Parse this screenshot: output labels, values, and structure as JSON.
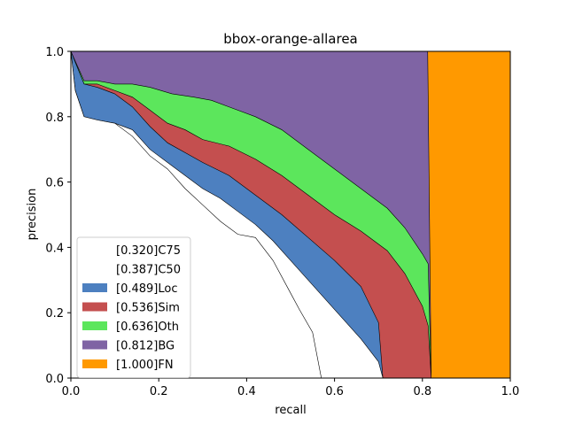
{
  "chart_data": {
    "type": "area",
    "title": "bbox-orange-allarea",
    "xlabel": "recall",
    "ylabel": "precision",
    "xlim": [
      0,
      1
    ],
    "ylim": [
      0,
      1
    ],
    "xticks": [
      "0.0",
      "0.2",
      "0.4",
      "0.6",
      "0.8",
      "1.0"
    ],
    "yticks": [
      "0.0",
      "0.2",
      "0.4",
      "0.6",
      "0.8",
      "1.0"
    ],
    "legend_position": "lower-left",
    "series": [
      {
        "name": "[1.000]FN",
        "color": "#ff9900",
        "points": [
          [
            0,
            1
          ],
          [
            1,
            1
          ]
        ]
      },
      {
        "name": "[0.812]BG",
        "color": "#7f64a4",
        "points": [
          [
            0,
            1
          ],
          [
            0.812,
            1
          ],
          [
            0.82,
            0
          ]
        ]
      },
      {
        "name": "[0.636]Oth",
        "color": "#5ce65c",
        "points": [
          [
            0,
            1
          ],
          [
            0.03,
            0.91
          ],
          [
            0.06,
            0.91
          ],
          [
            0.1,
            0.9
          ],
          [
            0.14,
            0.9
          ],
          [
            0.18,
            0.89
          ],
          [
            0.23,
            0.87
          ],
          [
            0.28,
            0.86
          ],
          [
            0.32,
            0.85
          ],
          [
            0.36,
            0.83
          ],
          [
            0.42,
            0.8
          ],
          [
            0.48,
            0.76
          ],
          [
            0.54,
            0.7
          ],
          [
            0.6,
            0.64
          ],
          [
            0.66,
            0.58
          ],
          [
            0.72,
            0.52
          ],
          [
            0.76,
            0.46
          ],
          [
            0.8,
            0.38
          ],
          [
            0.813,
            0.35
          ],
          [
            0.82,
            0
          ]
        ]
      },
      {
        "name": "[0.536]Sim",
        "color": "#c44f4f",
        "points": [
          [
            0,
            1
          ],
          [
            0.03,
            0.9
          ],
          [
            0.06,
            0.9
          ],
          [
            0.1,
            0.88
          ],
          [
            0.14,
            0.86
          ],
          [
            0.18,
            0.82
          ],
          [
            0.22,
            0.78
          ],
          [
            0.26,
            0.76
          ],
          [
            0.3,
            0.73
          ],
          [
            0.36,
            0.71
          ],
          [
            0.42,
            0.67
          ],
          [
            0.48,
            0.62
          ],
          [
            0.54,
            0.56
          ],
          [
            0.6,
            0.5
          ],
          [
            0.66,
            0.45
          ],
          [
            0.72,
            0.39
          ],
          [
            0.76,
            0.32
          ],
          [
            0.8,
            0.22
          ],
          [
            0.813,
            0.16
          ],
          [
            0.82,
            0
          ]
        ]
      },
      {
        "name": "[0.489]Loc",
        "color": "#4d80c0",
        "points": [
          [
            0,
            1
          ],
          [
            0.03,
            0.9
          ],
          [
            0.06,
            0.89
          ],
          [
            0.1,
            0.87
          ],
          [
            0.14,
            0.83
          ],
          [
            0.18,
            0.77
          ],
          [
            0.22,
            0.72
          ],
          [
            0.26,
            0.69
          ],
          [
            0.3,
            0.66
          ],
          [
            0.36,
            0.62
          ],
          [
            0.42,
            0.56
          ],
          [
            0.48,
            0.5
          ],
          [
            0.54,
            0.43
          ],
          [
            0.6,
            0.36
          ],
          [
            0.66,
            0.28
          ],
          [
            0.7,
            0.17
          ],
          [
            0.71,
            0
          ]
        ]
      },
      {
        "name": "[0.387]C50",
        "color": "#ffffff",
        "points": [
          [
            0,
            1
          ],
          [
            0.01,
            0.88
          ],
          [
            0.03,
            0.8
          ],
          [
            0.06,
            0.79
          ],
          [
            0.1,
            0.78
          ],
          [
            0.14,
            0.76
          ],
          [
            0.18,
            0.7
          ],
          [
            0.22,
            0.66
          ],
          [
            0.26,
            0.62
          ],
          [
            0.3,
            0.58
          ],
          [
            0.34,
            0.55
          ],
          [
            0.38,
            0.51
          ],
          [
            0.42,
            0.47
          ],
          [
            0.46,
            0.42
          ],
          [
            0.5,
            0.36
          ],
          [
            0.54,
            0.3
          ],
          [
            0.58,
            0.24
          ],
          [
            0.62,
            0.18
          ],
          [
            0.66,
            0.12
          ],
          [
            0.7,
            0.05
          ],
          [
            0.71,
            0
          ]
        ]
      },
      {
        "name": "[0.320]C75",
        "color": "#ffffff",
        "points": [
          [
            0,
            1
          ],
          [
            0.01,
            0.88
          ],
          [
            0.03,
            0.8
          ],
          [
            0.06,
            0.79
          ],
          [
            0.1,
            0.78
          ],
          [
            0.14,
            0.74
          ],
          [
            0.18,
            0.68
          ],
          [
            0.22,
            0.64
          ],
          [
            0.26,
            0.58
          ],
          [
            0.3,
            0.53
          ],
          [
            0.34,
            0.48
          ],
          [
            0.38,
            0.44
          ],
          [
            0.42,
            0.43
          ],
          [
            0.46,
            0.36
          ],
          [
            0.5,
            0.26
          ],
          [
            0.52,
            0.21
          ],
          [
            0.55,
            0.14
          ],
          [
            0.57,
            0
          ]
        ]
      }
    ]
  }
}
